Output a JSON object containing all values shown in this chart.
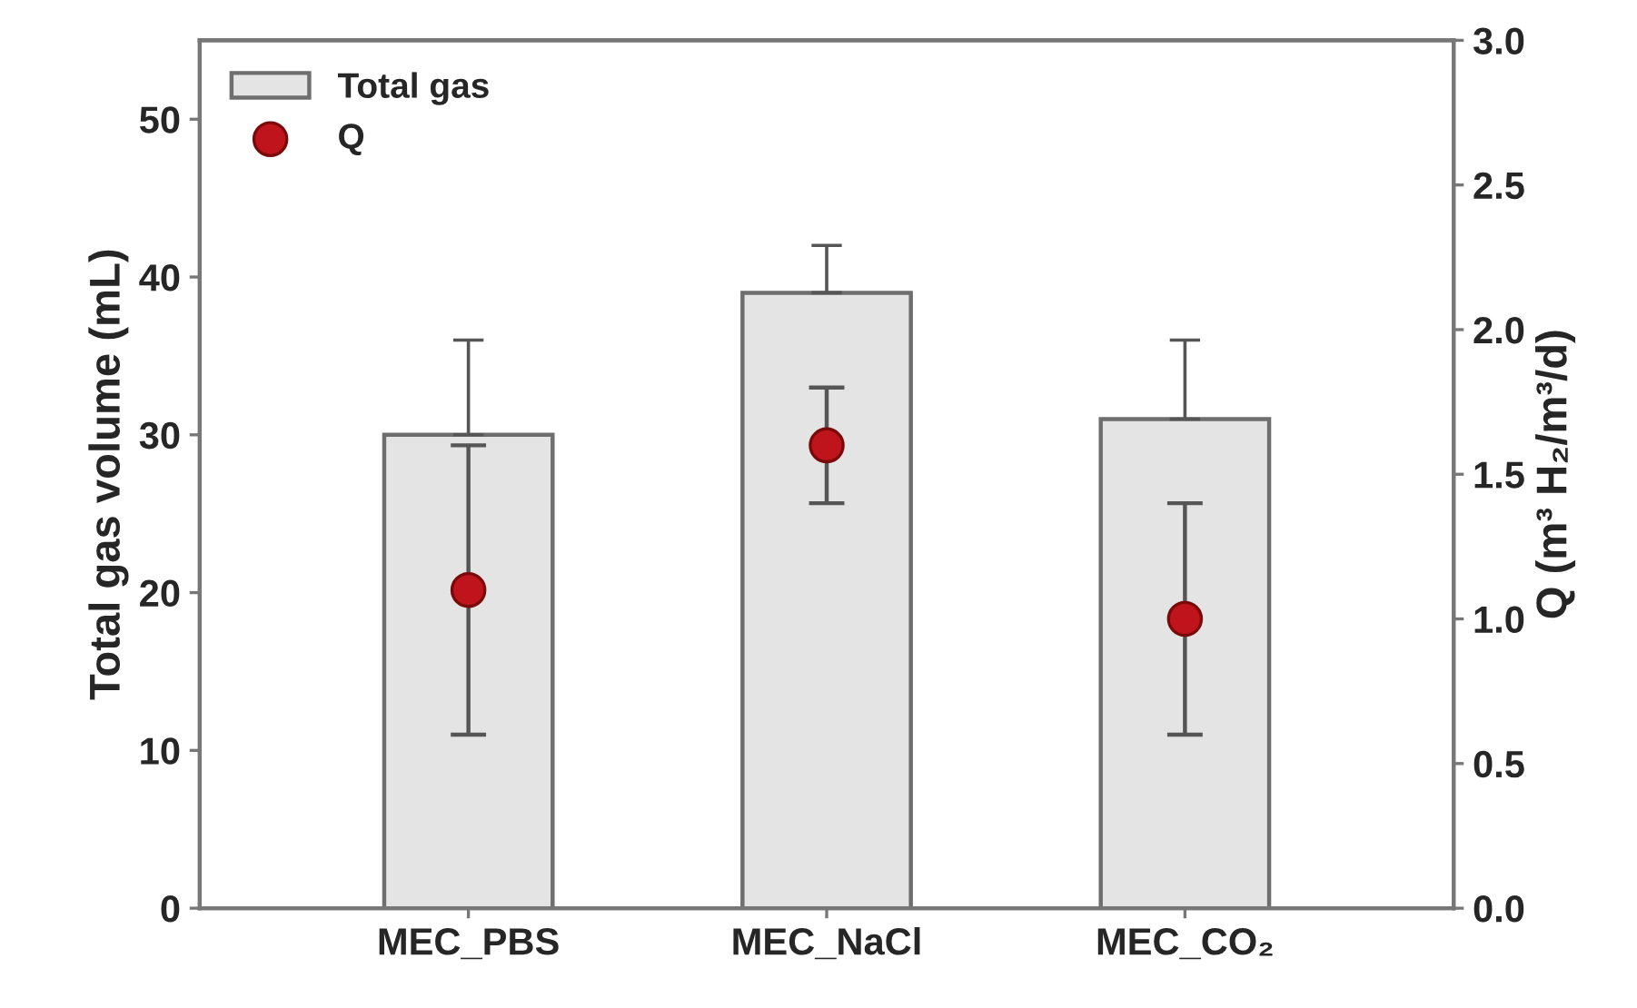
{
  "chart_data": {
    "type": "bar",
    "categories": [
      "MEC_PBS",
      "MEC_NaCl",
      "MEC_CO₂"
    ],
    "ylabel": "Total gas volume (mL)",
    "y2label": "Q (m³ H₂/m³/d)",
    "ylim": [
      0,
      55
    ],
    "yticks": [
      0,
      10,
      20,
      30,
      40,
      50
    ],
    "y2lim": [
      0,
      3.0
    ],
    "y2ticks": [
      {
        "value": 0,
        "label": "0.0"
      },
      {
        "value": 0.5,
        "label": "0.5"
      },
      {
        "value": 1.0,
        "label": "1.0"
      },
      {
        "value": 1.5,
        "label": "1.5"
      },
      {
        "value": 2.0,
        "label": "2.0"
      },
      {
        "value": 2.5,
        "label": "2.5"
      },
      {
        "value": 3.0,
        "label": "3.0"
      }
    ],
    "series": [
      {
        "name": "Total gas",
        "color": "#e4e4e4",
        "values": [
          30,
          39,
          31
        ],
        "errors": [
          [
            30,
            36
          ],
          [
            39,
            42
          ],
          [
            31,
            36
          ]
        ]
      },
      {
        "name": "Q",
        "type": "scatter",
        "axis": "y2",
        "color": "#c0141c",
        "marker": "circle",
        "values": [
          1.1,
          1.6,
          1.0
        ],
        "errors": [
          0.5,
          0.2,
          0.4
        ]
      }
    ],
    "legend": "top left",
    "grid": false
  }
}
